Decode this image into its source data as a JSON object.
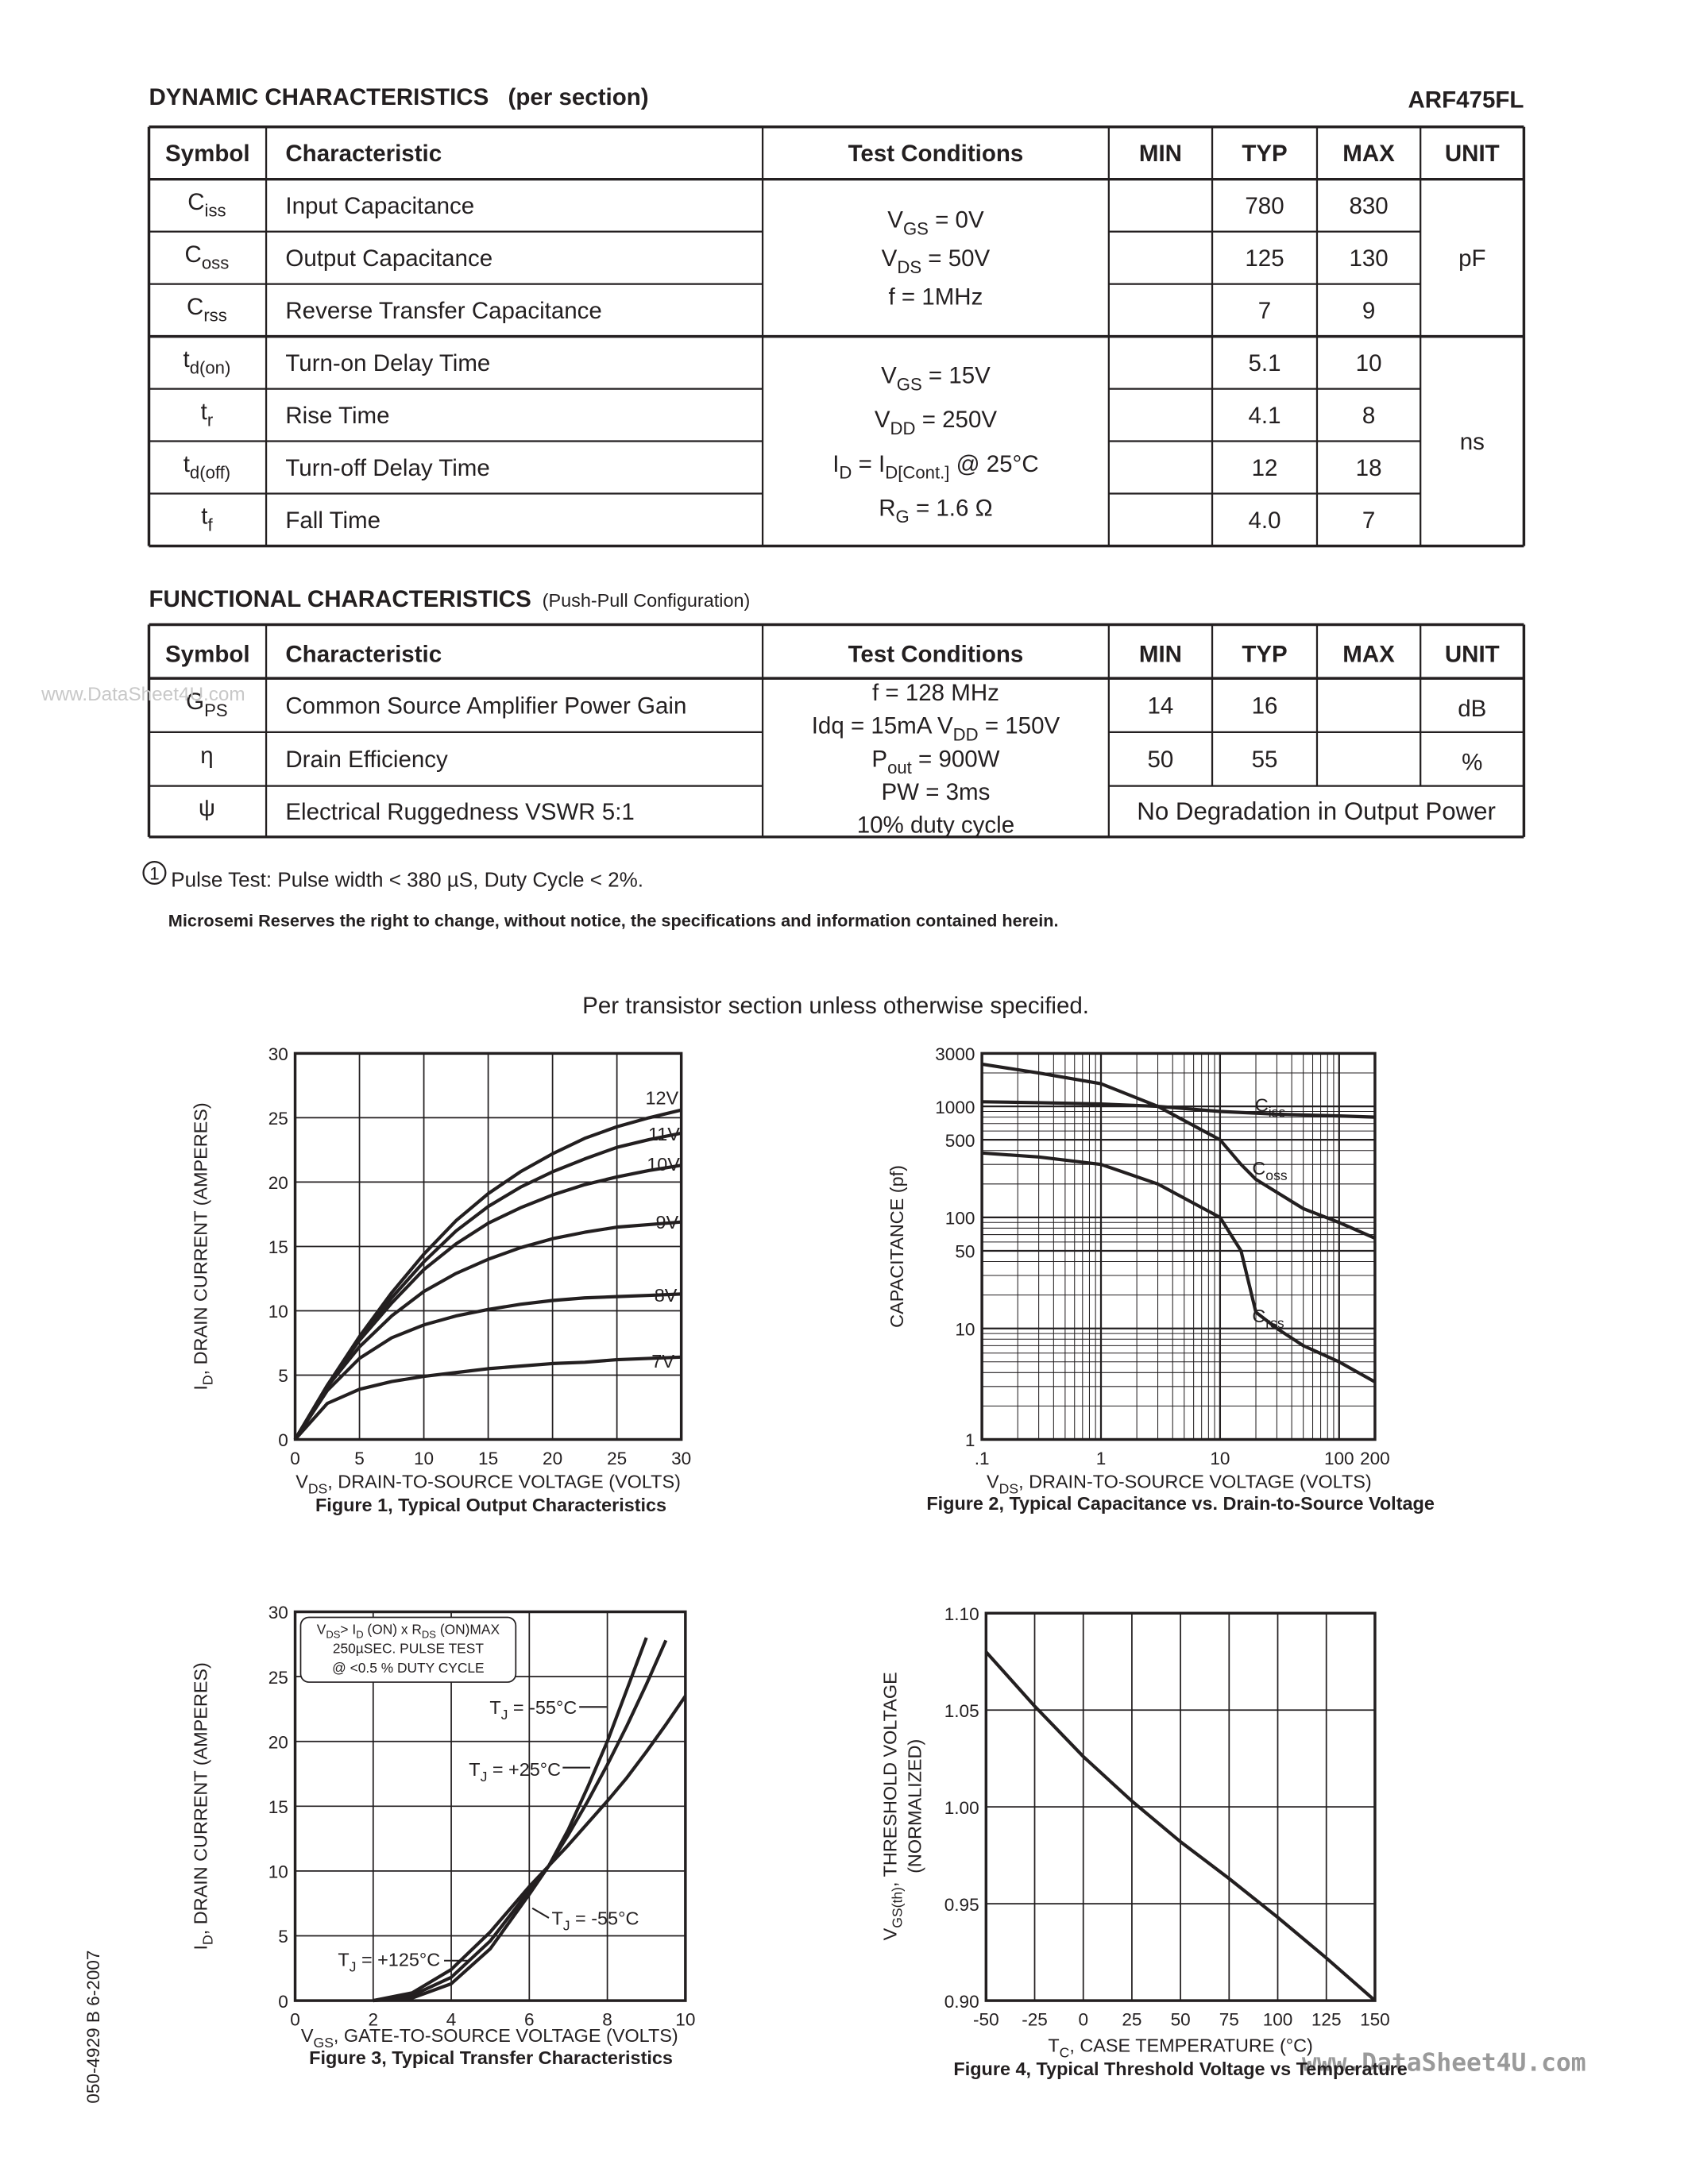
{
  "dynamic": {
    "title": "DYNAMIC CHARACTERISTICS",
    "note": "(per section)",
    "part": "ARF475FL",
    "columns": [
      "Symbol",
      "Characteristic",
      "Test Conditions",
      "MIN",
      "TYP",
      "MAX",
      "UNIT"
    ],
    "groups": [
      {
        "conditions": [
          [
            "V",
            "GS",
            " = 0V"
          ],
          [
            "V",
            "DS",
            " = 50V"
          ],
          "f = 1MHz"
        ],
        "unit": "pF",
        "rows": [
          {
            "symbol": [
              "C",
              "iss"
            ],
            "name": "Input Capacitance",
            "typ": 780,
            "max": 830
          },
          {
            "symbol": [
              "C",
              "oss"
            ],
            "name": "Output Capacitance",
            "typ": 125,
            "max": 130
          },
          {
            "symbol": [
              "C",
              "rss"
            ],
            "name": "Reverse Transfer Capacitance",
            "typ": 7,
            "max": 9
          }
        ]
      },
      {
        "conditions": [
          [
            "V",
            "GS",
            " = 15V"
          ],
          [
            "V",
            "DD",
            " = 250V"
          ],
          [
            "I",
            "D",
            " = I",
            "D[Cont.]",
            " @ 25°C"
          ],
          [
            "R",
            "G",
            " = 1.6 Ω"
          ]
        ],
        "unit": "ns",
        "rows": [
          {
            "symbol": [
              "t",
              "d(on)"
            ],
            "name": "Turn-on Delay Time",
            "typ": 5.1,
            "max": 10
          },
          {
            "symbol": [
              "t",
              "r"
            ],
            "name": "Rise Time",
            "typ": 4.1,
            "max": 8
          },
          {
            "symbol": [
              "t",
              "d(off)"
            ],
            "name": "Turn-off Delay Time",
            "typ": 12,
            "max": 18
          },
          {
            "symbol": [
              "t",
              "f"
            ],
            "name": "Fall Time",
            "typ": "4.0",
            "max": 7
          }
        ]
      }
    ]
  },
  "functional": {
    "title": "FUNCTIONAL CHARACTERISTICS",
    "note": "(Push-Pull Configuration)",
    "columns": [
      "Symbol",
      "Characteristic",
      "Test Conditions",
      "MIN",
      "TYP",
      "MAX",
      "UNIT"
    ],
    "conditions": [
      "f = 128 MHz",
      [
        "Idq = 15mA      V",
        "DD",
        " = 150V"
      ],
      [
        "P",
        "out",
        " = 900W"
      ],
      "PW = 3ms",
      "10% duty cycle"
    ],
    "rows": [
      {
        "symbol": [
          "G",
          "PS"
        ],
        "name": "Common Source Amplifier Power Gain",
        "min": 14,
        "typ": 16,
        "unit": "dB"
      },
      {
        "symbol": "η",
        "name": "Drain Efficiency",
        "min": 50,
        "typ": 55,
        "unit": "%"
      },
      {
        "symbol": "ψ",
        "name": "Electrical Ruggedness VSWR 5:1",
        "result": "No Degradation in Output Power"
      }
    ]
  },
  "footnote": {
    "marker": "1",
    "text": "Pulse Test: Pulse width < 380 µS, Duty Cycle < 2%."
  },
  "disclaimer": "Microsemi Reserves the right to change, without notice, the specifications and information contained herein.",
  "caption": "Per transistor section unless otherwise specified.",
  "doc_number": "050-4929  B  6-2007",
  "watermarks": [
    "www.DataSheet4U.com",
    "www.DataSheet4U.com"
  ],
  "chart_data": [
    {
      "type": "line",
      "title": "Figure 1, Typical Output Characteristics",
      "color": "#231f20",
      "grid": true,
      "x_label": [
        "V",
        "DS",
        ", DRAIN-TO-SOURCE VOLTAGE (VOLTS)"
      ],
      "y_label": [
        "I",
        "D",
        ", DRAIN CURRENT (AMPERES)"
      ],
      "xlim": [
        0,
        30
      ],
      "ylim": [
        0,
        30
      ],
      "xticks": [
        0,
        5,
        10,
        15,
        20,
        25,
        30
      ],
      "yticks": [
        0,
        5,
        10,
        15,
        20,
        25,
        30
      ],
      "x": [
        0,
        2.5,
        5,
        7.5,
        10,
        12.5,
        15,
        17.5,
        20,
        22.5,
        25,
        27.5,
        30
      ],
      "series": [
        {
          "name": "12V",
          "values": [
            0,
            4.2,
            8,
            11.4,
            14.4,
            17,
            19.1,
            20.8,
            22.2,
            23.4,
            24.3,
            25,
            25.6
          ]
        },
        {
          "name": "11V",
          "values": [
            0,
            4.2,
            7.9,
            11,
            13.8,
            16.2,
            18.1,
            19.6,
            20.8,
            21.8,
            22.7,
            23.3,
            23.8
          ]
        },
        {
          "name": "10V",
          "values": [
            0,
            4.2,
            7.7,
            10.6,
            13.2,
            15.2,
            16.8,
            18,
            19,
            19.8,
            20.4,
            20.9,
            21.3
          ]
        },
        {
          "name": "9V",
          "values": [
            0,
            4.1,
            7.2,
            9.6,
            11.5,
            12.9,
            14,
            14.9,
            15.6,
            16.1,
            16.5,
            16.7,
            16.9
          ]
        },
        {
          "name": "8V",
          "values": [
            0,
            3.8,
            6.3,
            7.9,
            8.9,
            9.6,
            10.1,
            10.5,
            10.8,
            11,
            11.1,
            11.2,
            11.3
          ]
        },
        {
          "name": "7V",
          "values": [
            0,
            2.8,
            3.9,
            4.5,
            4.9,
            5.2,
            5.5,
            5.7,
            5.9,
            6,
            6.2,
            6.3,
            6.4
          ]
        }
      ]
    },
    {
      "type": "line",
      "title": "Figure 2, Typical Capacitance vs. Drain-to-Source Voltage",
      "color": "#231f20",
      "grid": true,
      "xlog": true,
      "ylog": true,
      "x_label": [
        "V",
        "DS",
        ", DRAIN-TO-SOURCE VOLTAGE (VOLTS)"
      ],
      "y_label": "CAPACITANCE (pf)",
      "xlim": [
        0.1,
        200
      ],
      "ylim": [
        1,
        3000
      ],
      "xticks": [
        {
          "value": 0.1,
          "label": ".1"
        },
        1,
        10,
        100,
        200
      ],
      "yticks": [
        1,
        10,
        50,
        100,
        500,
        1000,
        3000
      ],
      "series": [
        {
          "name": [
            "C",
            "iss"
          ],
          "x": [
            0.1,
            0.3,
            1,
            3,
            10,
            30,
            100,
            200
          ],
          "values": [
            1100,
            1080,
            1050,
            1000,
            900,
            850,
            820,
            800
          ]
        },
        {
          "name": [
            "C",
            "oss"
          ],
          "x": [
            0.1,
            0.3,
            1,
            3,
            10,
            15,
            20,
            50,
            100,
            200
          ],
          "values": [
            2400,
            2000,
            1600,
            1000,
            500,
            300,
            220,
            120,
            90,
            65
          ]
        },
        {
          "name": [
            "C",
            "rss"
          ],
          "x": [
            0.1,
            0.3,
            1,
            3,
            10,
            15,
            20,
            30,
            50,
            100,
            200
          ],
          "values": [
            380,
            350,
            300,
            200,
            100,
            50,
            14,
            10,
            7,
            5,
            3.3
          ]
        }
      ]
    },
    {
      "type": "line",
      "title": "Figure 3, Typical Transfer Characteristics",
      "color": "#231f20",
      "grid": true,
      "x_label": [
        "V",
        "GS",
        ", GATE-TO-SOURCE VOLTAGE (VOLTS)"
      ],
      "y_label": [
        "I",
        "D",
        ", DRAIN CURRENT (AMPERES)"
      ],
      "xlim": [
        0,
        10
      ],
      "ylim": [
        0,
        30
      ],
      "xticks": [
        0,
        2,
        4,
        6,
        8,
        10
      ],
      "yticks": [
        0,
        5,
        10,
        15,
        20,
        25,
        30
      ],
      "x": [
        2,
        3,
        4,
        5,
        6,
        6.5,
        7,
        7.5,
        8,
        8.5,
        9,
        9.5,
        10
      ],
      "series": [
        {
          "name": [
            "T",
            "J",
            " = -55°C"
          ],
          "values": [
            0,
            0.2,
            1.3,
            4,
            8.2,
            10.4,
            13.2,
            16.5,
            20,
            24,
            28,
            null,
            null
          ]
        },
        {
          "name": [
            "T",
            "J",
            " = +25°C"
          ],
          "values": [
            0,
            0.4,
            1.8,
            4.6,
            8.5,
            10.4,
            12.8,
            15.4,
            18.2,
            21.2,
            24.4,
            27.8,
            null
          ]
        },
        {
          "name": [
            "T",
            "J",
            " = +125°C"
          ],
          "values": [
            0,
            0.6,
            2.4,
            5.3,
            8.8,
            10.4,
            12,
            13.7,
            15.4,
            17.2,
            19.2,
            21.3,
            23.5
          ]
        }
      ],
      "note_box": [
        [
          "V",
          "DS",
          "> I",
          "D",
          " (ON) x R",
          "DS",
          " (ON)MAX"
        ],
        "250µSEC. PULSE TEST",
        "@ <0.5 % DUTY CYCLE"
      ],
      "annotations": [
        [
          "T",
          "J",
          " = -55°C"
        ]
      ]
    },
    {
      "type": "line",
      "title": "Figure 4, Typical Threshold Voltage vs Temperature",
      "color": "#231f20",
      "grid": true,
      "x_label": [
        "T",
        "C",
        ", CASE TEMPERATURE (°C)"
      ],
      "y_label": [
        "V",
        "GS(th)",
        ", THRESHOLD VOLTAGE"
      ],
      "y_label2": "(NORMALIZED)",
      "xlim": [
        -50,
        150
      ],
      "ylim": [
        0.9,
        1.1
      ],
      "xticks": [
        -50,
        -25,
        0,
        25,
        50,
        75,
        100,
        125,
        150
      ],
      "yticks": [
        {
          "value": 0.9,
          "label": "0.90"
        },
        0.95,
        {
          "value": 1,
          "label": "1.00"
        },
        1.05,
        {
          "value": 1.1,
          "label": "1.10"
        }
      ],
      "x": [
        -50,
        -25,
        0,
        25,
        50,
        75,
        100,
        125,
        150
      ],
      "series": [
        {
          "name": null,
          "values": [
            1.08,
            1.052,
            1.026,
            1.003,
            0.982,
            0.963,
            0.943,
            0.922,
            0.9
          ]
        }
      ]
    }
  ]
}
